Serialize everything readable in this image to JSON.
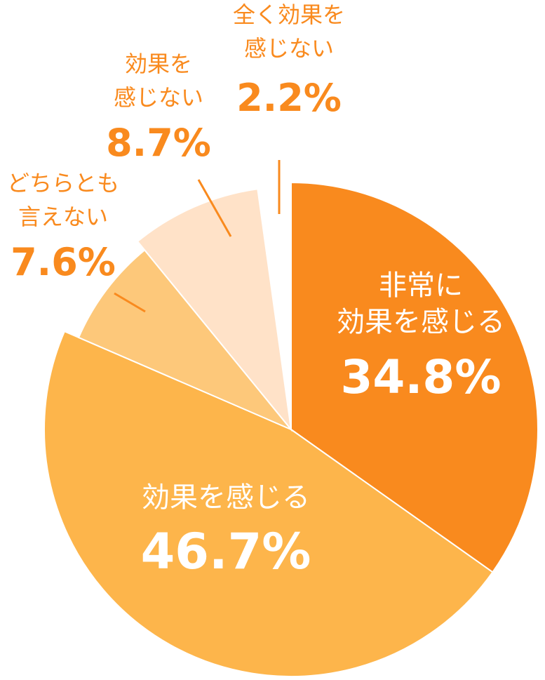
{
  "chart_data": {
    "type": "pie",
    "slices": [
      {
        "label_lines": [
          "非常に",
          "効果を感じる"
        ],
        "percent_text": "34.8%",
        "value": 34.8,
        "color": "#F98A1E",
        "label_color": "#FFFFFF"
      },
      {
        "label_lines": [
          "効果を感じる"
        ],
        "percent_text": "46.7%",
        "value": 46.7,
        "color": "#FDB54B",
        "label_color": "#FFFFFF"
      },
      {
        "label_lines": [
          "どちらとも",
          "言えない"
        ],
        "percent_text": "7.6%",
        "value": 7.6,
        "color": "#FDC87A",
        "label_color": "#F98A1E"
      },
      {
        "label_lines": [
          "効果を",
          "感じない"
        ],
        "percent_text": "8.7%",
        "value": 8.7,
        "color": "#FFE2C8",
        "label_color": "#F98A1E"
      },
      {
        "label_lines": [
          "全く効果を",
          "感じない"
        ],
        "percent_text": "2.2%",
        "value": 2.2,
        "color": "#FFFFFF",
        "label_color": "#F98A1E"
      }
    ]
  }
}
